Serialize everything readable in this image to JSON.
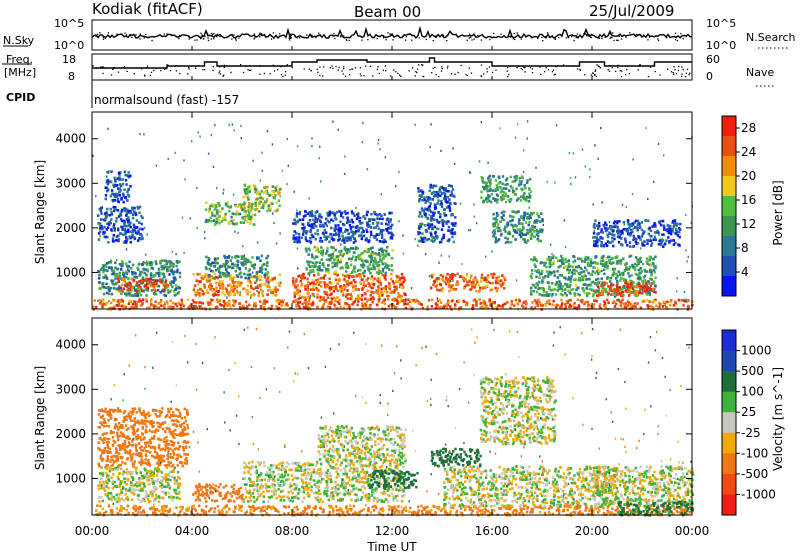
{
  "header": {
    "station": "Kodiak (fitACF)",
    "beam": "Beam 00",
    "date": "25/Jul/2009"
  },
  "noise_panel": {
    "left_label": "N.Sky",
    "right_label": "N.Search",
    "left_ticks": [
      "10^5",
      "10^0"
    ],
    "right_ticks": [
      "10^5",
      "10^0"
    ]
  },
  "freq_panel": {
    "left_label": "Freq.",
    "left_unit": "[MHz]",
    "left_ticks": [
      "18",
      "8"
    ],
    "right_label": "Nave",
    "right_ticks": [
      "60",
      "0"
    ],
    "cpid_label": "CPID",
    "program": "normalsound (fast) -157"
  },
  "colors": {
    "power": [
      "#0a14f0",
      "#1e50b4",
      "#287890",
      "#3c9650",
      "#50be3c",
      "#f0c81e",
      "#f08c0a",
      "#e65010",
      "#f01e0a"
    ],
    "velocity": [
      "#1e2ad2",
      "#1e46b4",
      "#1e6e3c",
      "#3cb43c",
      "#c8c8c0",
      "#f0aa0a",
      "#f07814",
      "#f04a0f",
      "#f01e14"
    ]
  },
  "chart_data": [
    {
      "type": "heatmap",
      "title": "",
      "xlabel": "Time UT",
      "ylabel": "Slant Range [km]",
      "x_ticks": [
        "00:00",
        "04:00",
        "08:00",
        "12:00",
        "16:00",
        "20:00",
        "00:00"
      ],
      "xlim_hours": [
        0,
        24
      ],
      "y_ticks": [
        1000,
        2000,
        3000,
        4000
      ],
      "ylim": [
        180,
        4600
      ],
      "colorbar": {
        "label": "Power [dB]",
        "ticks": [
          "4",
          "8",
          "12",
          "16",
          "20",
          "24",
          "28"
        ],
        "range": [
          0,
          30
        ]
      },
      "regions": [
        {
          "t0": 0.0,
          "t1": 24.0,
          "r0": 200,
          "r1": 420,
          "value": 24
        },
        {
          "t0": 0.2,
          "t1": 3.5,
          "r0": 500,
          "r1": 1300,
          "value": 10
        },
        {
          "t0": 1.0,
          "t1": 3.0,
          "r0": 600,
          "r1": 900,
          "value": 26
        },
        {
          "t0": 0.2,
          "t1": 2.0,
          "r0": 1700,
          "r1": 2500,
          "value": 5
        },
        {
          "t0": 0.5,
          "t1": 1.5,
          "r0": 2600,
          "r1": 3300,
          "value": 5
        },
        {
          "t0": 4.0,
          "t1": 7.5,
          "r0": 500,
          "r1": 1000,
          "value": 22
        },
        {
          "t0": 4.5,
          "t1": 7.0,
          "r0": 900,
          "r1": 1400,
          "value": 10
        },
        {
          "t0": 4.5,
          "t1": 6.5,
          "r0": 2100,
          "r1": 2600,
          "value": 14
        },
        {
          "t0": 6.0,
          "t1": 7.5,
          "r0": 2400,
          "r1": 3000,
          "value": 16
        },
        {
          "t0": 8.0,
          "t1": 12.5,
          "r0": 400,
          "r1": 1000,
          "value": 24
        },
        {
          "t0": 8.5,
          "t1": 12.0,
          "r0": 1000,
          "r1": 1600,
          "value": 13
        },
        {
          "t0": 8.0,
          "t1": 12.0,
          "r0": 1700,
          "r1": 2400,
          "value": 5
        },
        {
          "t0": 13.0,
          "t1": 14.5,
          "r0": 1700,
          "r1": 3000,
          "value": 6
        },
        {
          "t0": 13.5,
          "t1": 16.5,
          "r0": 600,
          "r1": 1000,
          "value": 24
        },
        {
          "t0": 15.5,
          "t1": 17.5,
          "r0": 2600,
          "r1": 3200,
          "value": 12
        },
        {
          "t0": 16.0,
          "t1": 18.0,
          "r0": 1700,
          "r1": 2400,
          "value": 10
        },
        {
          "t0": 17.5,
          "t1": 22.5,
          "r0": 500,
          "r1": 1400,
          "value": 12
        },
        {
          "t0": 20.0,
          "t1": 22.5,
          "r0": 500,
          "r1": 800,
          "value": 26
        },
        {
          "t0": 20.0,
          "t1": 23.5,
          "r0": 1600,
          "r1": 2200,
          "value": 5
        }
      ]
    },
    {
      "type": "heatmap",
      "title": "",
      "xlabel": "Time UT",
      "ylabel": "Slant Range [km]",
      "x_ticks": [
        "00:00",
        "04:00",
        "08:00",
        "12:00",
        "16:00",
        "20:00",
        "00:00"
      ],
      "xlim_hours": [
        0,
        24
      ],
      "y_ticks": [
        1000,
        2000,
        3000,
        4000
      ],
      "ylim": [
        180,
        4600
      ],
      "colorbar": {
        "label": "Velocity [m s^-1]",
        "ticks": [
          "1000",
          "500",
          "100",
          "25",
          "-25",
          "-100",
          "-500",
          "-1000"
        ],
        "range": [
          1200,
          -1200
        ]
      },
      "regions": [
        {
          "t0": 0.0,
          "t1": 24.0,
          "r0": 200,
          "r1": 420,
          "value": -150
        },
        {
          "t0": 0.2,
          "t1": 3.5,
          "r0": 500,
          "r1": 1300,
          "value": 0
        },
        {
          "t0": 0.2,
          "t1": 3.8,
          "r0": 1300,
          "r1": 2600,
          "value": -300
        },
        {
          "t0": 4.0,
          "t1": 6.0,
          "r0": 500,
          "r1": 900,
          "value": -400
        },
        {
          "t0": 6.0,
          "t1": 12.5,
          "r0": 500,
          "r1": 1400,
          "value": 0
        },
        {
          "t0": 9.0,
          "t1": 12.5,
          "r0": 1400,
          "r1": 2200,
          "value": 0
        },
        {
          "t0": 11.0,
          "t1": 13.0,
          "r0": 800,
          "r1": 1200,
          "value": 300
        },
        {
          "t0": 13.5,
          "t1": 15.5,
          "r0": 1300,
          "r1": 1700,
          "value": 400
        },
        {
          "t0": 14.0,
          "t1": 21.0,
          "r0": 400,
          "r1": 1300,
          "value": 0
        },
        {
          "t0": 15.5,
          "t1": 18.5,
          "r0": 1800,
          "r1": 3300,
          "value": 0
        },
        {
          "t0": 20.0,
          "t1": 24.0,
          "r0": 400,
          "r1": 1300,
          "value": 0
        },
        {
          "t0": 21.0,
          "t1": 24.0,
          "r0": 200,
          "r1": 500,
          "value": 150
        }
      ]
    }
  ]
}
